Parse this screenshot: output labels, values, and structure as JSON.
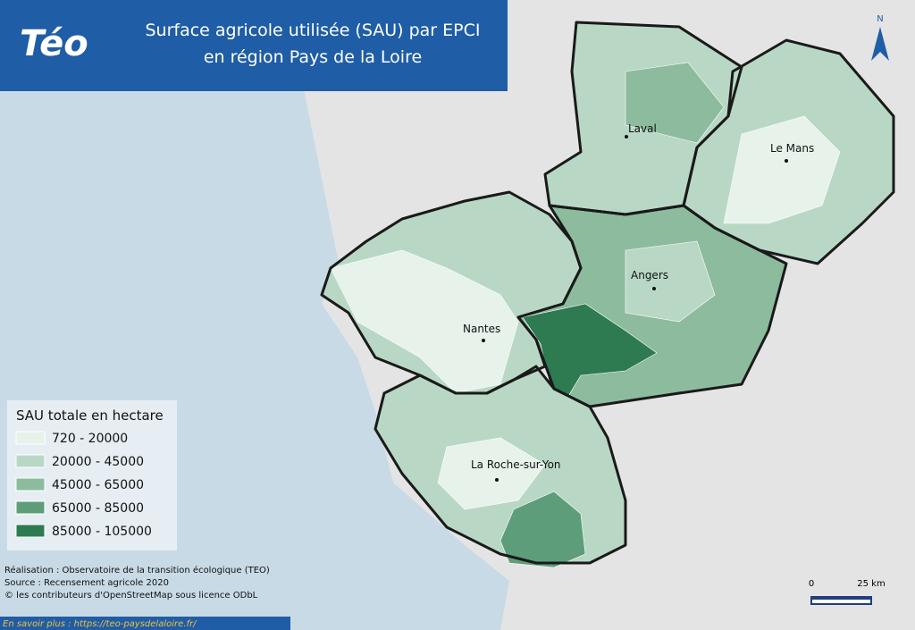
{
  "header": {
    "logo": "Téo",
    "title_lines": [
      "Surface agricole utilisée (SAU) par EPCI",
      "en région Pays de la Loire"
    ]
  },
  "legend": {
    "title": "SAU totale en hectare",
    "classes": [
      {
        "label": "720 - 20000",
        "color": "#e6f2ea"
      },
      {
        "label": "20000 - 45000",
        "color": "#b8d8c5"
      },
      {
        "label": "45000 - 65000",
        "color": "#8dbb9e"
      },
      {
        "label": "65000 - 85000",
        "color": "#5e9d7a"
      },
      {
        "label": "85000 - 105000",
        "color": "#2e7a51"
      }
    ]
  },
  "cities": [
    "Laval",
    "Le Mans",
    "Angers",
    "Nantes",
    "La Roche-sur-Yon"
  ],
  "credits": [
    "Réalisation : Observatoire de la transition écologique (TEO)",
    "Source : Recensement agricole 2020",
    "© les contributeurs d'OpenStreetMap sous licence ODbL"
  ],
  "scale": {
    "labels": [
      "0",
      "25 km"
    ]
  },
  "north": "N",
  "footer": {
    "link": "En savoir plus : https://teo-paysdelaloire.fr/"
  }
}
